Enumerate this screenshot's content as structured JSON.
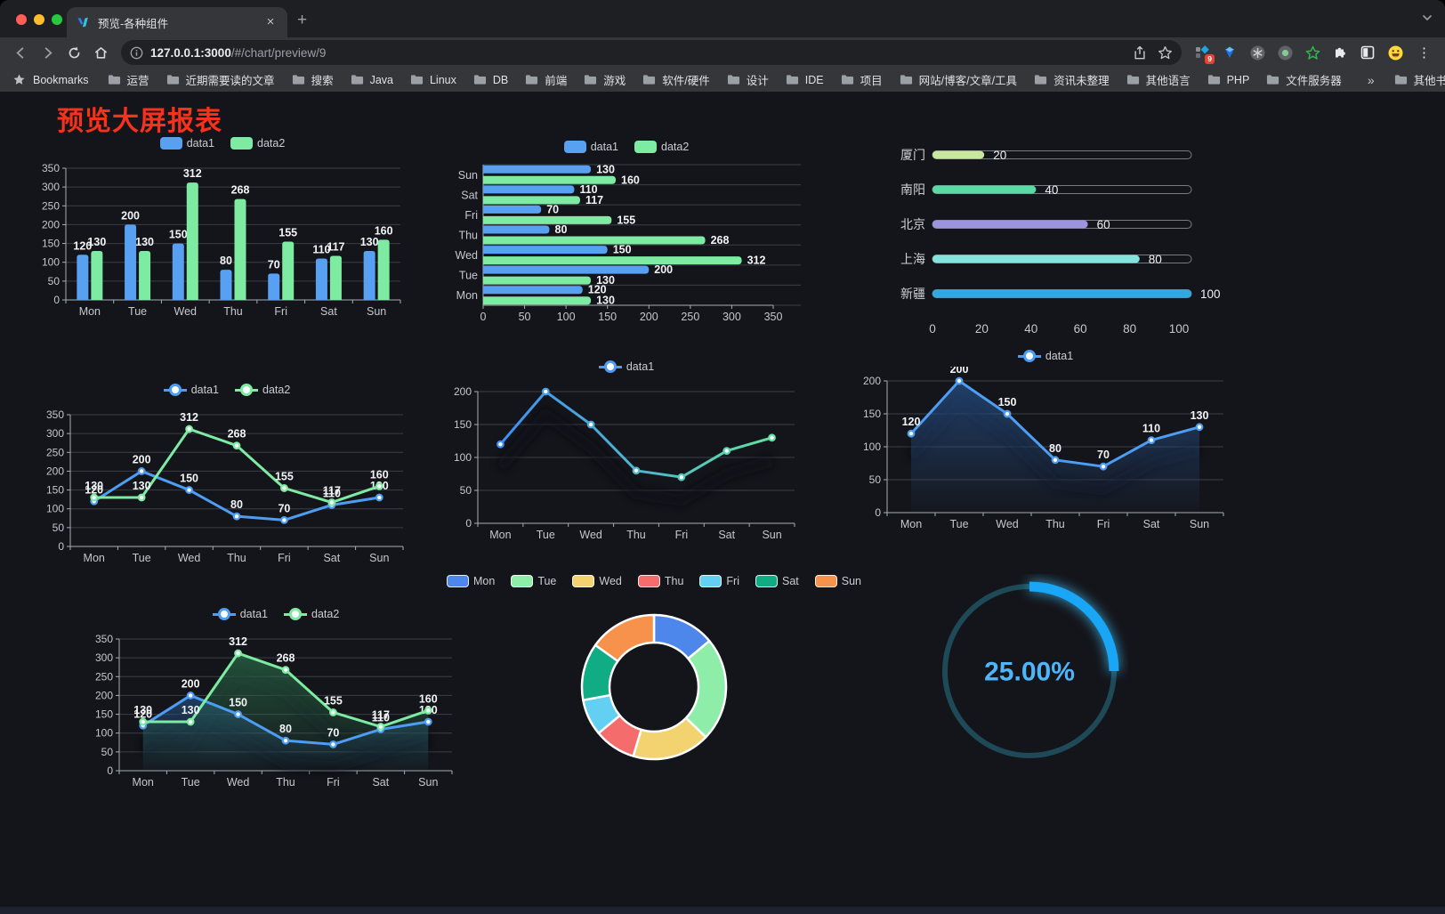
{
  "browser": {
    "traffic_lights": {
      "close": "#ff5f57",
      "minimize": "#febc2e",
      "zoom": "#28c840"
    },
    "tab_title": "预览-各种组件",
    "close_glyph": "×",
    "new_tab_glyph": "+",
    "url_host": "127.0.0.1:3000",
    "url_path": "/#/chart/preview/9",
    "extension_badge": "9",
    "menu_glyph": "⋮",
    "bookmarks": {
      "root_label": "Bookmarks",
      "folders": [
        "运营",
        "近期需要读的文章",
        "搜索",
        "Java",
        "Linux",
        "DB",
        "前端",
        "游戏",
        "软件/硬件",
        "设计",
        "IDE",
        "项目",
        "网站/博客/文章/工具",
        "资讯未整理",
        "其他语言",
        "PHP",
        "文件服务器"
      ],
      "overflow_glyph": "»",
      "other_label": "其他书签"
    }
  },
  "page": {
    "heading": "预览大屏报表",
    "heading_color": "#f5321c",
    "background": "#14151a"
  },
  "palette": {
    "data1": "#57a0f2",
    "data2": "#7deba2"
  },
  "chart_data": [
    {
      "id": "grouped-bar",
      "type": "bar",
      "categories": [
        "Mon",
        "Tue",
        "Wed",
        "Thu",
        "Fri",
        "Sat",
        "Sun"
      ],
      "series": [
        {
          "name": "data1",
          "color": "#57a0f2",
          "values": [
            120,
            200,
            150,
            80,
            70,
            110,
            130
          ]
        },
        {
          "name": "data2",
          "color": "#7deba2",
          "values": [
            130,
            130,
            312,
            268,
            155,
            117,
            160
          ]
        }
      ],
      "ylim": [
        0,
        350
      ],
      "yticks": [
        0,
        50,
        100,
        150,
        200,
        250,
        300,
        350
      ],
      "grid": true,
      "legend_position": "top"
    },
    {
      "id": "horizontal-grouped-bar",
      "type": "hbar",
      "categories_top_to_bottom": [
        "Sun",
        "Sat",
        "Fri",
        "Thu",
        "Wed",
        "Tue",
        "Mon"
      ],
      "series": [
        {
          "name": "data1",
          "color": "#57a0f2",
          "values_top_to_bottom": [
            130,
            110,
            70,
            80,
            150,
            200,
            120
          ]
        },
        {
          "name": "data2",
          "color": "#7deba2",
          "values_top_to_bottom": [
            160,
            117,
            155,
            268,
            312,
            130,
            130
          ]
        }
      ],
      "xlim": [
        0,
        350
      ],
      "xticks": [
        0,
        50,
        100,
        150,
        200,
        250,
        300,
        350
      ],
      "grid": true,
      "legend_position": "top"
    },
    {
      "id": "city-progress",
      "type": "progress",
      "items": [
        {
          "label": "厦门",
          "value": 20,
          "color": "#c8e89e"
        },
        {
          "label": "南阳",
          "value": 40,
          "color": "#5bd9a4"
        },
        {
          "label": "北京",
          "value": 60,
          "color": "#9a95de"
        },
        {
          "label": "上海",
          "value": 80,
          "color": "#82e4dc"
        },
        {
          "label": "新疆",
          "value": 100,
          "color": "#2fa8e4"
        }
      ],
      "xlim": [
        0,
        100
      ],
      "xticks": [
        0,
        20,
        40,
        60,
        80,
        100
      ]
    },
    {
      "id": "two-series-line",
      "type": "line",
      "categories": [
        "Mon",
        "Tue",
        "Wed",
        "Thu",
        "Fri",
        "Sat",
        "Sun"
      ],
      "series": [
        {
          "name": "data1",
          "color": "#4d9df3",
          "values": [
            120,
            200,
            150,
            80,
            70,
            110,
            130
          ],
          "show_labels": true
        },
        {
          "name": "data2",
          "color": "#7deba2",
          "values": [
            130,
            130,
            312,
            268,
            155,
            117,
            160
          ],
          "show_labels": true
        }
      ],
      "ylim": [
        0,
        350
      ],
      "yticks": [
        0,
        50,
        100,
        150,
        200,
        250,
        300,
        350
      ],
      "grid": true,
      "legend_position": "top"
    },
    {
      "id": "gradient-line",
      "type": "line",
      "categories": [
        "Mon",
        "Tue",
        "Wed",
        "Thu",
        "Fri",
        "Sat",
        "Sun"
      ],
      "series": [
        {
          "name": "data1",
          "color": "#4d9df3",
          "gradient": [
            "#3f8ff5",
            "#5fe2a0"
          ],
          "values": [
            120,
            200,
            150,
            80,
            70,
            110,
            130
          ],
          "show_labels": false
        }
      ],
      "ylim": [
        0,
        200
      ],
      "yticks": [
        0,
        50,
        100,
        150,
        200
      ],
      "grid": true,
      "shadow": true,
      "legend_position": "top"
    },
    {
      "id": "single-area-line",
      "type": "line",
      "categories": [
        "Mon",
        "Tue",
        "Wed",
        "Thu",
        "Fri",
        "Sat",
        "Sun"
      ],
      "series": [
        {
          "name": "data1",
          "color": "#4d9df3",
          "values": [
            120,
            200,
            150,
            80,
            70,
            110,
            130
          ],
          "show_labels": true,
          "area": "#2a5c9e"
        }
      ],
      "ylim": [
        0,
        200
      ],
      "yticks": [
        0,
        50,
        100,
        150,
        200
      ],
      "grid": true,
      "shadow": true,
      "legend_position": "top"
    },
    {
      "id": "two-series-area-line",
      "type": "line",
      "categories": [
        "Mon",
        "Tue",
        "Wed",
        "Thu",
        "Fri",
        "Sat",
        "Sun"
      ],
      "series": [
        {
          "name": "data1",
          "color": "#4d9df3",
          "values": [
            120,
            200,
            150,
            80,
            70,
            110,
            130
          ],
          "show_labels": true,
          "area": "#27588f"
        },
        {
          "name": "data2",
          "color": "#7deba2",
          "values": [
            130,
            130,
            312,
            268,
            155,
            117,
            160
          ],
          "show_labels": true,
          "area": "#2e7a52"
        }
      ],
      "ylim": [
        0,
        350
      ],
      "yticks": [
        0,
        50,
        100,
        150,
        200,
        250,
        300,
        350
      ],
      "grid": true,
      "shadow": true,
      "legend_position": "top"
    },
    {
      "id": "weekday-donut",
      "type": "donut",
      "legend_position": "top",
      "slices": [
        {
          "label": "Mon",
          "value": 120,
          "color": "#4e87ec"
        },
        {
          "label": "Tue",
          "value": 200,
          "color": "#8fedaa"
        },
        {
          "label": "Wed",
          "value": 150,
          "color": "#f3d36f"
        },
        {
          "label": "Thu",
          "value": 80,
          "color": "#f56c6c"
        },
        {
          "label": "Fri",
          "value": 70,
          "color": "#63cff2"
        },
        {
          "label": "Sat",
          "value": 110,
          "color": "#10ad85"
        },
        {
          "label": "Sun",
          "value": 130,
          "color": "#f6924c"
        }
      ]
    },
    {
      "id": "percent-gauge",
      "type": "gauge",
      "value": 25,
      "display": "25.00%",
      "track_color": "#1d4a56",
      "progress_color": "#1aa6f6",
      "text_color": "#4db5f8"
    }
  ]
}
